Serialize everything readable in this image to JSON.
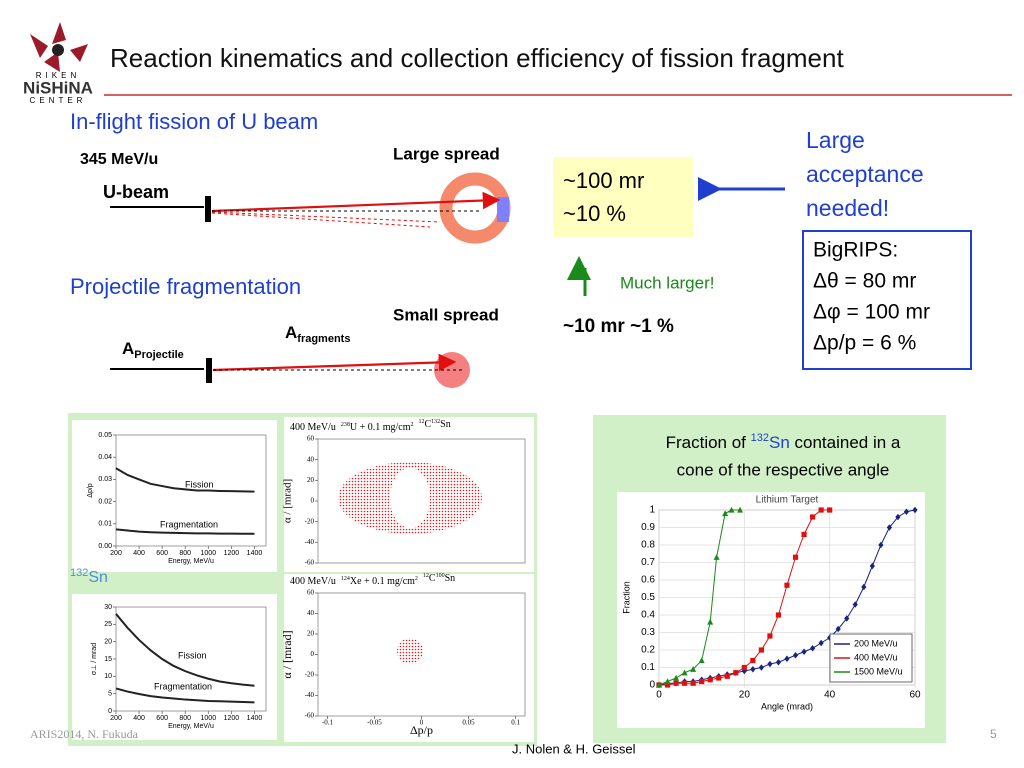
{
  "header": {
    "title": "Reaction kinematics and collection efficiency of fission fragment",
    "logo": [
      "RIKEN",
      "NiSHiNA",
      "CENTER"
    ]
  },
  "fission": {
    "heading": "In-flight fission of U beam",
    "energy": "345 MeV/u",
    "beam": "U-beam",
    "spread": "Large spread",
    "box": [
      "~100 mr",
      "~10 %"
    ],
    "acceptance": [
      "Large",
      "acceptance",
      "needed!"
    ]
  },
  "bigrips": [
    "BigRIPS:",
    "Δθ = 80 mr",
    "Δφ = 100 mr",
    "Δp/p = 6 %"
  ],
  "fragmentation": {
    "heading": "Projectile fragmentation",
    "spread": "Small spread",
    "note": "Much larger!",
    "values": "~10 mr  ~1 %",
    "projectile": {
      "main": "A",
      "sub": "Projectile"
    },
    "fragments": {
      "main": "A",
      "sub": "fragments"
    }
  },
  "isotope": {
    "sup": "132",
    "text": "Sn"
  },
  "charts": {
    "dpp": {
      "type": "line",
      "xlabel": "Energy, MeV/u",
      "ylabel": "Δp/p",
      "xlim": [
        200,
        1500
      ],
      "xticks": [
        200,
        400,
        600,
        800,
        1000,
        1200,
        1400
      ],
      "ylim": [
        0,
        0.05
      ],
      "yticks": [
        {
          "value": 0,
          "label": "0.00"
        },
        0.01,
        0.02,
        0.03,
        0.04,
        0.05
      ],
      "series": [
        {
          "name": "Fission",
          "color": "#222222",
          "x": [
            200,
            300,
            400,
            500,
            600,
            700,
            800,
            900,
            1000,
            1100,
            1200,
            1300,
            1400
          ],
          "values": [
            0.035,
            0.032,
            0.03,
            0.028,
            0.027,
            0.026,
            0.0255,
            0.025,
            0.025,
            0.0248,
            0.0247,
            0.0246,
            0.0245
          ]
        },
        {
          "name": "Fragmentation",
          "color": "#222222",
          "x": [
            200,
            300,
            400,
            500,
            600,
            700,
            800,
            900,
            1000,
            1100,
            1200,
            1300,
            1400
          ],
          "values": [
            0.0075,
            0.007,
            0.0065,
            0.0062,
            0.006,
            0.0059,
            0.0058,
            0.0057,
            0.0057,
            0.0056,
            0.0056,
            0.0055,
            0.0055
          ]
        }
      ]
    },
    "sigma": {
      "type": "line",
      "xlabel": "Energy, MeV/u",
      "ylabel": "σ⊥ / mrad",
      "xlim": [
        200,
        1500
      ],
      "xticks": [
        200,
        400,
        600,
        800,
        1000,
        1200,
        1400
      ],
      "ylim": [
        0,
        30
      ],
      "yticks": [
        0,
        5,
        10,
        15,
        20,
        25,
        30
      ],
      "series": [
        {
          "name": "Fission",
          "color": "#222222",
          "x": [
            200,
            300,
            400,
            500,
            600,
            700,
            800,
            900,
            1000,
            1100,
            1200,
            1300,
            1400
          ],
          "values": [
            28,
            24,
            20.5,
            17.5,
            15,
            13,
            11.5,
            10.3,
            9.3,
            8.5,
            8,
            7.6,
            7.3
          ]
        },
        {
          "name": "Fragmentation",
          "color": "#222222",
          "x": [
            200,
            300,
            400,
            500,
            600,
            700,
            800,
            900,
            1000,
            1100,
            1200,
            1300,
            1400
          ],
          "values": [
            6.5,
            5.6,
            4.9,
            4.3,
            3.9,
            3.6,
            3.3,
            3.1,
            2.9,
            2.8,
            2.7,
            2.6,
            2.5
          ]
        }
      ]
    },
    "u238": {
      "type": "scatter",
      "title": [
        "400 MeV/u",
        "238",
        "U + 0.1 mg/cm",
        "2",
        "12",
        "C",
        "132",
        "Sn"
      ],
      "ylabel": "α / [mrad]",
      "ylim": [
        -60,
        60
      ],
      "yticks": [
        -60,
        -40,
        -20,
        0,
        20,
        40,
        60
      ],
      "series": []
    },
    "xe124": {
      "type": "scatter",
      "title": [
        "400 MeV/u",
        "124",
        "Xe + 0.1 mg/cm",
        "2",
        "12",
        "C",
        "100",
        "Sn"
      ],
      "ylabel": "α / [mrad]",
      "xlabel": "Δp/p",
      "xlim": [
        -0.11,
        0.11
      ],
      "xticks": [
        -0.1,
        -0.05,
        0,
        0.05,
        0.1
      ],
      "ylim": [
        -60,
        60
      ],
      "yticks": [
        -60,
        -40,
        -20,
        0,
        20,
        40,
        60
      ],
      "series": []
    },
    "fraction": {
      "type": "line",
      "heading": [
        "Fraction of ",
        "132",
        "Sn",
        " contained in a",
        "cone of the respective angle"
      ],
      "title": "Lithium Target",
      "xlabel": "Angle (mrad)",
      "ylabel": "Fraction",
      "grid": true,
      "legend": "lower right",
      "xlim": [
        0,
        60
      ],
      "xticks": [
        0,
        20,
        40,
        60
      ],
      "ylim": [
        0,
        1
      ],
      "yticks": [
        0,
        0.1,
        0.2,
        0.3,
        0.4,
        0.5,
        0.6,
        0.7,
        0.8,
        0.9,
        1
      ],
      "series": [
        {
          "name": "200 MeV/u",
          "color": "#1a237e",
          "marker": "diamond",
          "x": [
            0,
            2,
            4,
            6,
            8,
            10,
            12,
            14,
            16,
            18,
            20,
            22,
            24,
            26,
            28,
            30,
            32,
            34,
            36,
            38,
            40,
            42,
            44,
            46,
            48,
            50,
            52,
            54,
            56,
            58,
            60
          ],
          "values": [
            0,
            0.01,
            0.01,
            0.02,
            0.02,
            0.03,
            0.04,
            0.05,
            0.06,
            0.07,
            0.08,
            0.09,
            0.1,
            0.12,
            0.13,
            0.15,
            0.17,
            0.19,
            0.21,
            0.24,
            0.27,
            0.32,
            0.38,
            0.46,
            0.56,
            0.68,
            0.8,
            0.9,
            0.96,
            0.99,
            1
          ]
        },
        {
          "name": "400 MeV/u",
          "color": "#e01010",
          "marker": "square",
          "x": [
            0,
            2,
            4,
            6,
            8,
            10,
            12,
            14,
            16,
            18,
            20,
            22,
            24,
            26,
            28,
            30,
            32,
            34,
            36,
            38,
            40
          ],
          "values": [
            0,
            0,
            0.01,
            0.01,
            0.01,
            0.02,
            0.03,
            0.04,
            0.05,
            0.07,
            0.1,
            0.14,
            0.2,
            0.28,
            0.4,
            0.57,
            0.73,
            0.86,
            0.96,
            1,
            1
          ]
        },
        {
          "name": "1500 MeV/u",
          "color": "#1a8a1a",
          "marker": "triangle",
          "x": [
            0,
            2,
            4,
            6,
            8,
            10,
            12,
            13.5,
            15.5,
            17,
            19
          ],
          "values": [
            0,
            0.02,
            0.04,
            0.07,
            0.09,
            0.14,
            0.36,
            0.73,
            0.98,
            1,
            1
          ]
        }
      ]
    }
  },
  "footer": {
    "left": "ARIS2014, N. Fukuda",
    "center": "J. Nolen & H. Geissel",
    "page": "5"
  }
}
